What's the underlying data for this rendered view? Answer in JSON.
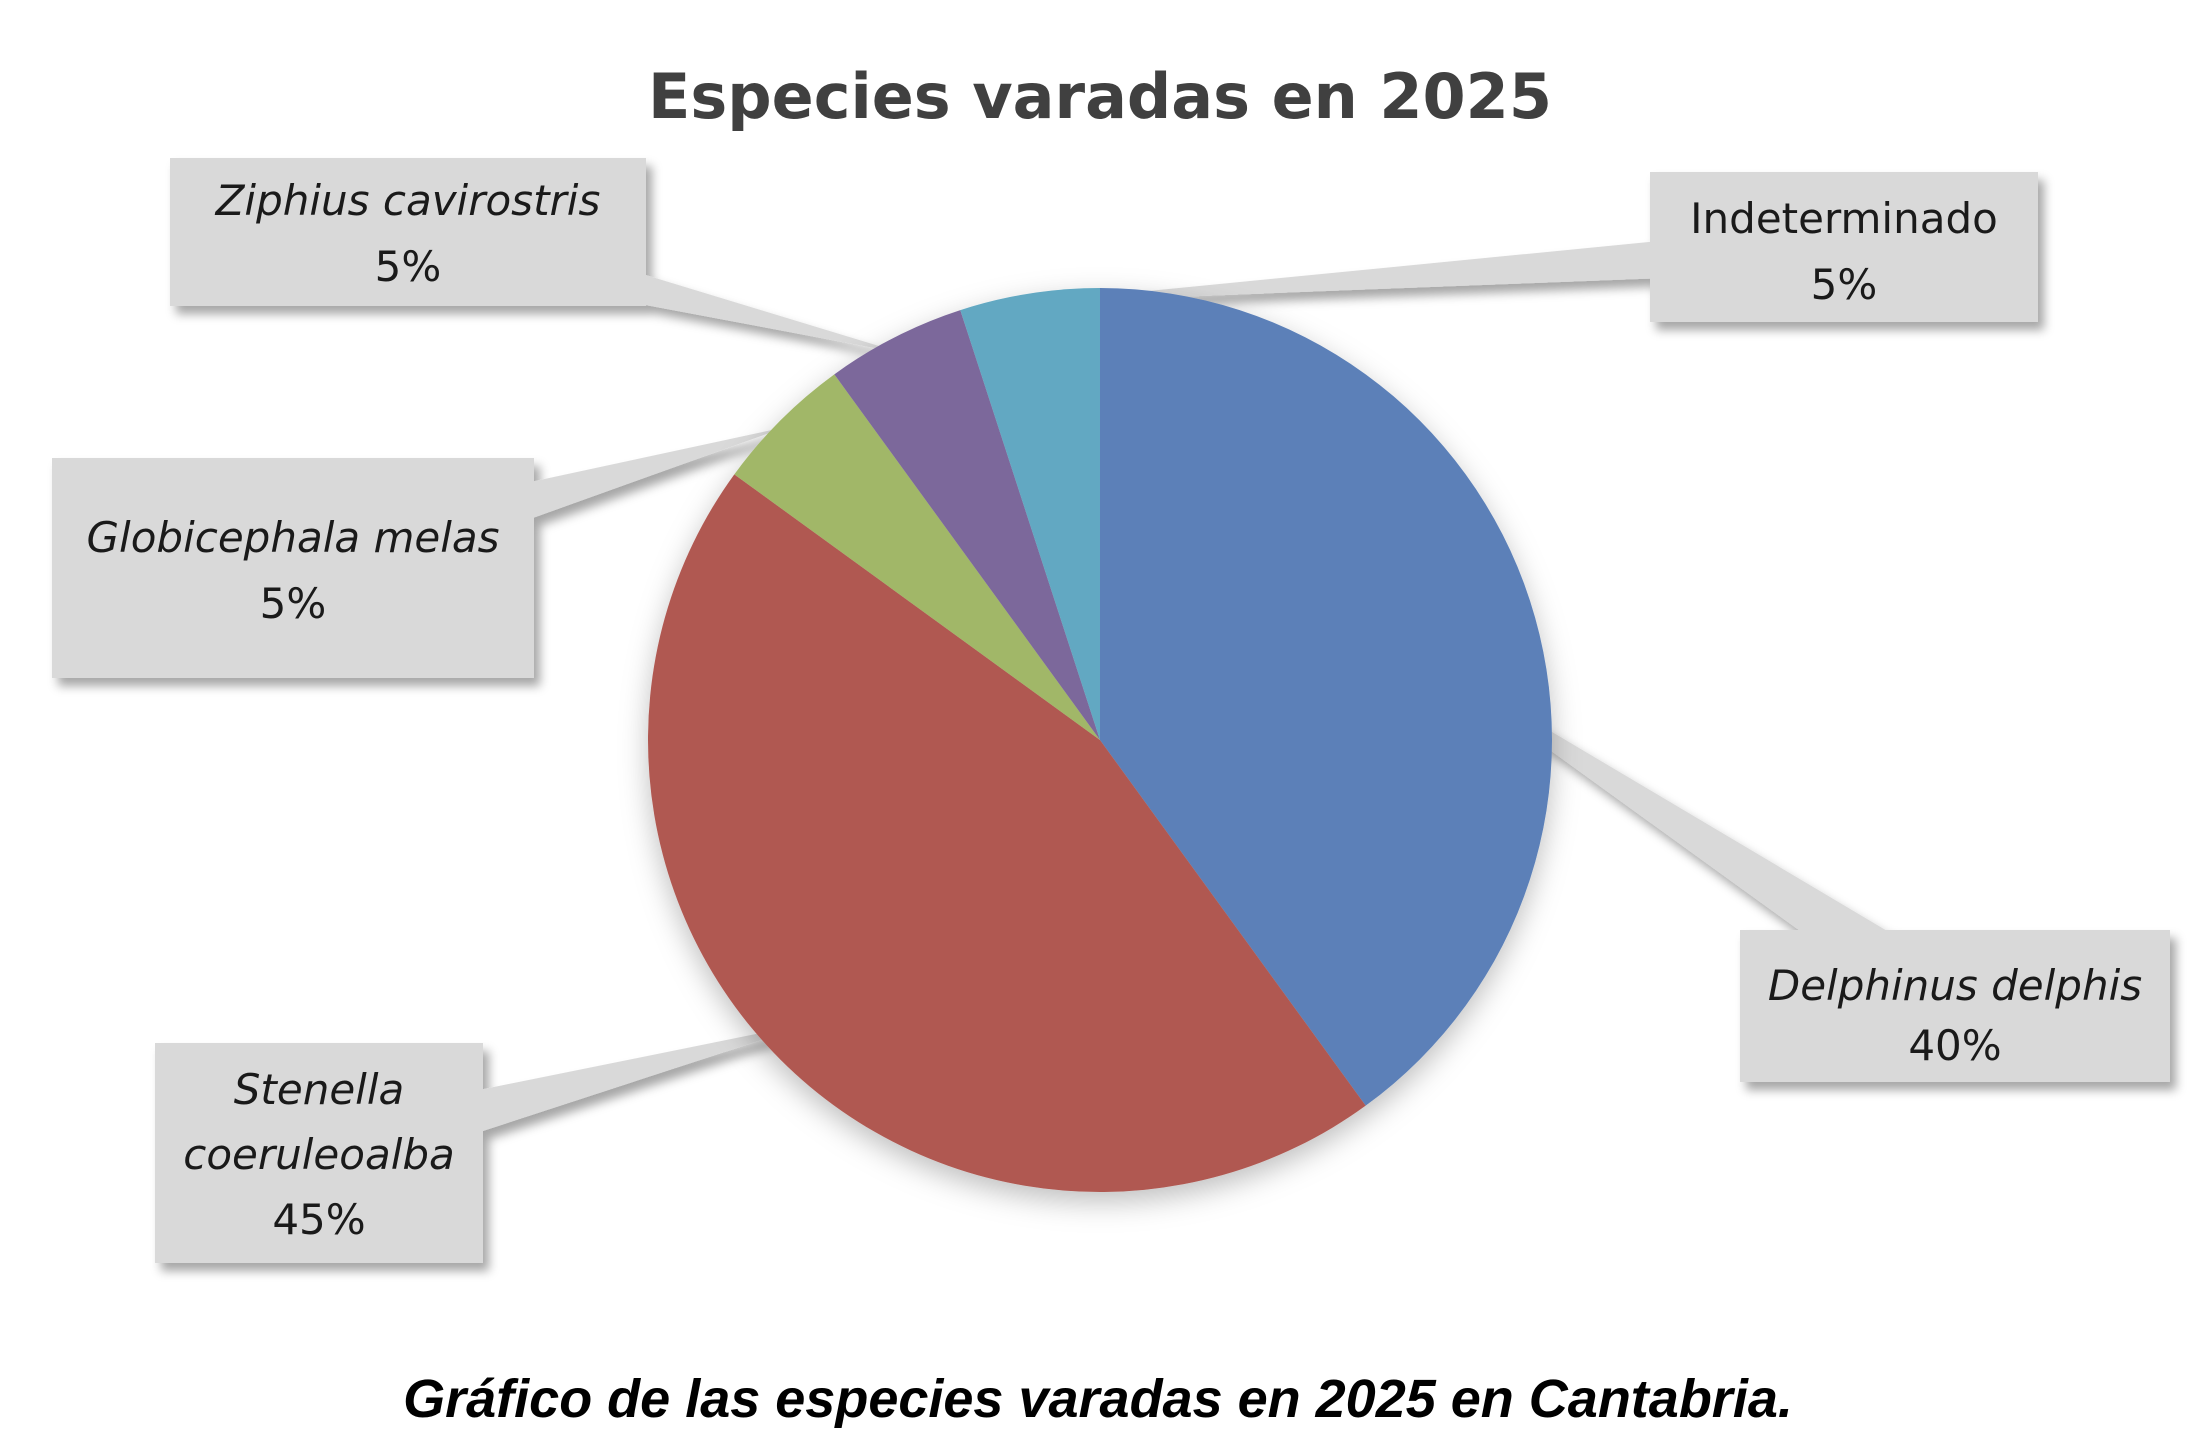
{
  "chart_data": {
    "type": "pie",
    "title": "Especies varadas en 2025",
    "start_angle_deg": 0,
    "direction": "clockwise",
    "slices": [
      {
        "name": "Delphinus delphis",
        "value": 40,
        "label": "40%",
        "color": "#5b80b8",
        "italic": true
      },
      {
        "name": "Stenella coeruleoalba",
        "value": 45,
        "label": "45%",
        "color": "#b05951",
        "italic": true
      },
      {
        "name": "Globicephala melas",
        "value": 5,
        "label": "5%",
        "color": "#a1b768",
        "italic": true
      },
      {
        "name": "Ziphius cavirostris",
        "value": 5,
        "label": "5%",
        "color": "#7c689b",
        "italic": true
      },
      {
        "name": "Indeterminado",
        "value": 5,
        "label": "5%",
        "color": "#62a8c2",
        "italic": false
      }
    ],
    "legend": "none",
    "data_labels": "callouts"
  },
  "caption": "Gráfico de las especies varadas en 2025 en Cantabria."
}
